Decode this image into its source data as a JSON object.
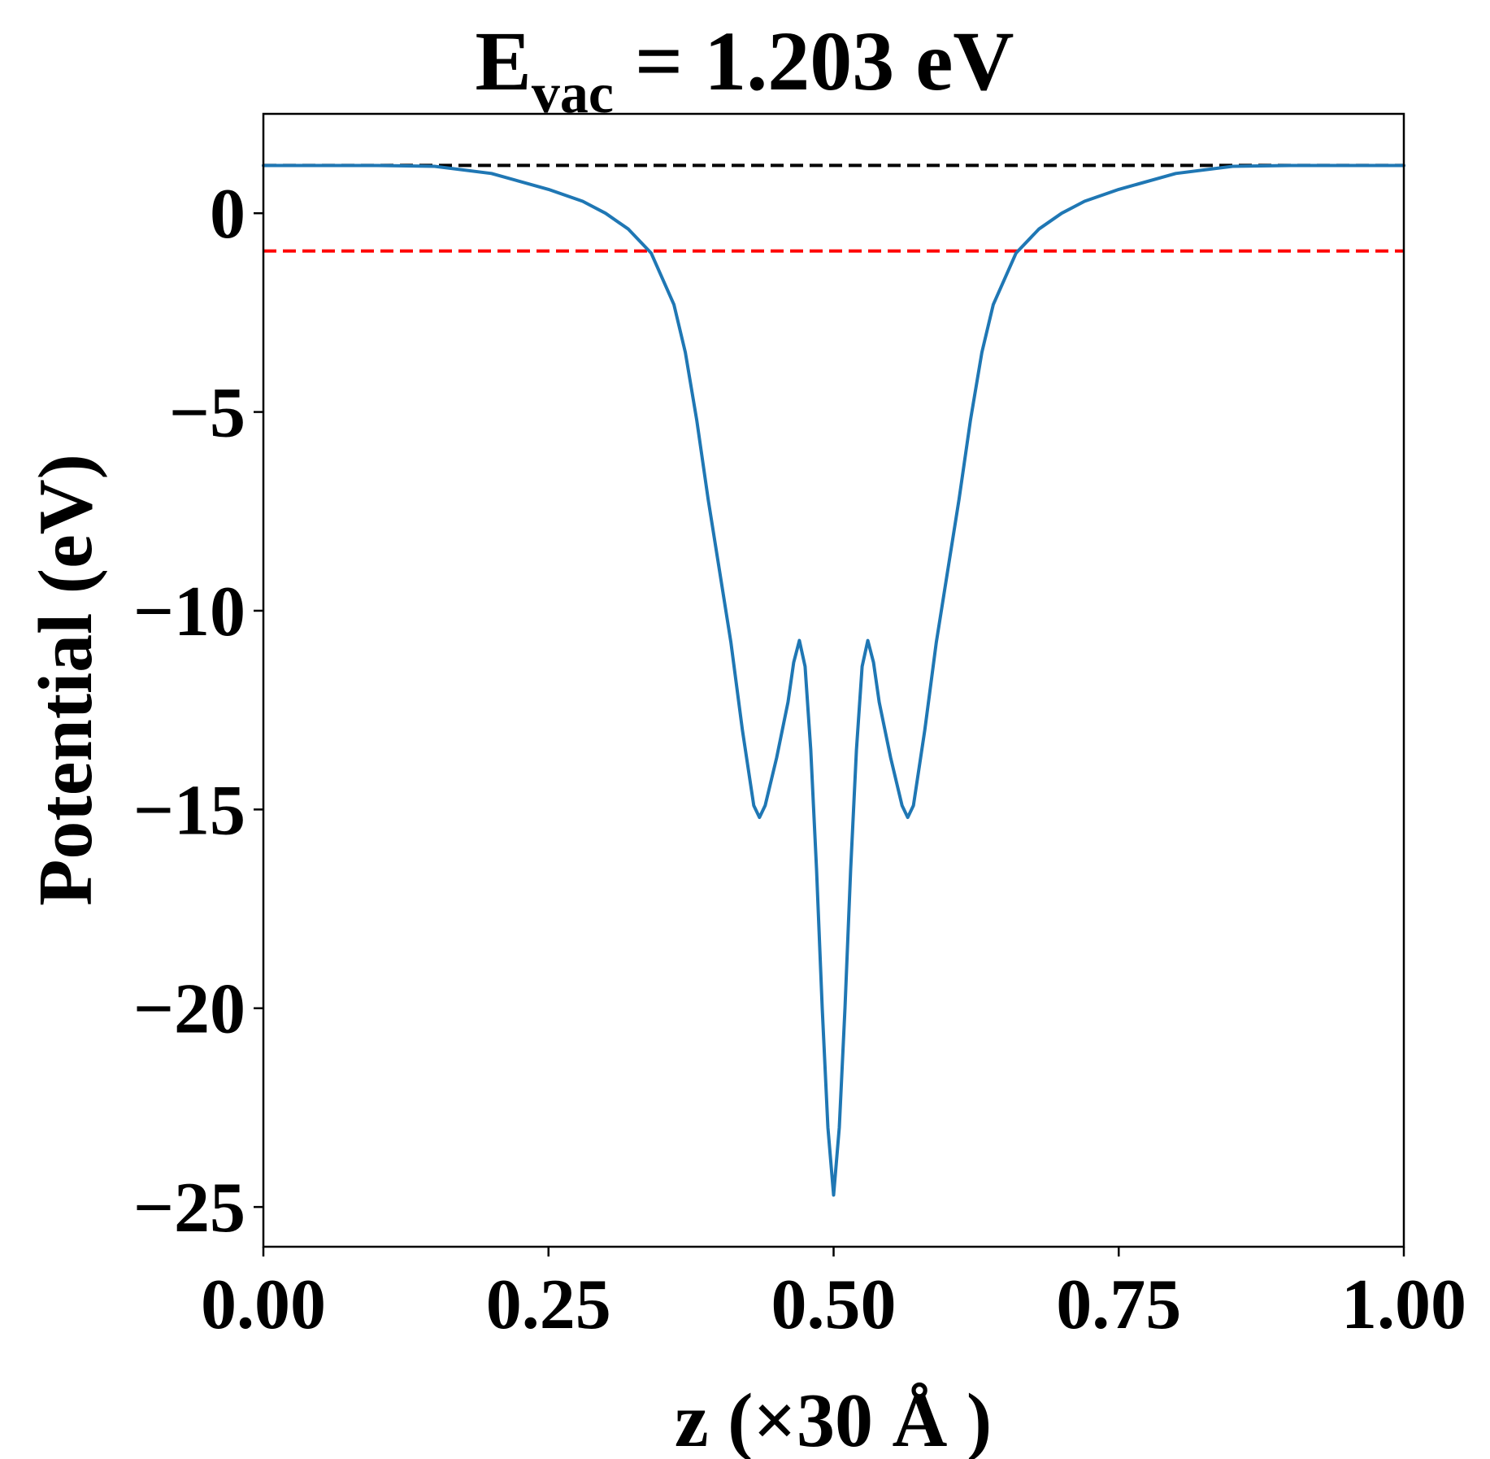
{
  "chart_data": {
    "type": "line",
    "title": {
      "main": "E",
      "subscript": "vac",
      "rest": " = 1.203 eV"
    },
    "xlabel": "z (×30 Å )",
    "ylabel": "Potential (eV)",
    "xlim": [
      0,
      1
    ],
    "ylim": [
      -26,
      2.5
    ],
    "x_ticks": [
      0.0,
      0.25,
      0.5,
      0.75,
      1.0
    ],
    "x_tick_labels": [
      "0.00",
      "0.25",
      "0.50",
      "0.75",
      "1.00"
    ],
    "y_ticks": [
      0,
      -5,
      -10,
      -15,
      -20,
      -25
    ],
    "y_tick_labels": [
      "0",
      "−5",
      "−10",
      "−15",
      "−20",
      "−25"
    ],
    "grid": false,
    "reference_lines": [
      {
        "y": 1.203,
        "color": "#000000",
        "style": "dashed"
      },
      {
        "y": -0.95,
        "color": "#ff0000",
        "style": "dashed"
      }
    ],
    "series": [
      {
        "color": "#1f77b4",
        "points": [
          [
            0.0,
            1.2
          ],
          [
            0.05,
            1.2
          ],
          [
            0.1,
            1.2
          ],
          [
            0.15,
            1.18
          ],
          [
            0.2,
            1.0
          ],
          [
            0.25,
            0.6
          ],
          [
            0.28,
            0.3
          ],
          [
            0.3,
            0.0
          ],
          [
            0.32,
            -0.4
          ],
          [
            0.34,
            -1.0
          ],
          [
            0.36,
            -2.3
          ],
          [
            0.37,
            -3.5
          ],
          [
            0.38,
            -5.2
          ],
          [
            0.39,
            -7.2
          ],
          [
            0.4,
            -9.0
          ],
          [
            0.41,
            -10.8
          ],
          [
            0.42,
            -13.0
          ],
          [
            0.43,
            -14.9
          ],
          [
            0.435,
            -15.2
          ],
          [
            0.44,
            -14.9
          ],
          [
            0.45,
            -13.7
          ],
          [
            0.46,
            -12.3
          ],
          [
            0.465,
            -11.3
          ],
          [
            0.47,
            -10.75
          ],
          [
            0.475,
            -11.4
          ],
          [
            0.48,
            -13.5
          ],
          [
            0.485,
            -16.5
          ],
          [
            0.49,
            -20.0
          ],
          [
            0.495,
            -23.0
          ],
          [
            0.5,
            -24.7
          ],
          [
            0.505,
            -23.0
          ],
          [
            0.51,
            -20.0
          ],
          [
            0.515,
            -16.5
          ],
          [
            0.52,
            -13.5
          ],
          [
            0.525,
            -11.4
          ],
          [
            0.53,
            -10.75
          ],
          [
            0.535,
            -11.3
          ],
          [
            0.54,
            -12.3
          ],
          [
            0.55,
            -13.7
          ],
          [
            0.56,
            -14.9
          ],
          [
            0.565,
            -15.2
          ],
          [
            0.57,
            -14.9
          ],
          [
            0.58,
            -13.0
          ],
          [
            0.59,
            -10.8
          ],
          [
            0.6,
            -9.0
          ],
          [
            0.61,
            -7.2
          ],
          [
            0.62,
            -5.2
          ],
          [
            0.63,
            -3.5
          ],
          [
            0.64,
            -2.3
          ],
          [
            0.66,
            -1.0
          ],
          [
            0.68,
            -0.4
          ],
          [
            0.7,
            0.0
          ],
          [
            0.72,
            0.3
          ],
          [
            0.75,
            0.6
          ],
          [
            0.8,
            1.0
          ],
          [
            0.85,
            1.18
          ],
          [
            0.9,
            1.2
          ],
          [
            0.95,
            1.2
          ],
          [
            1.0,
            1.2
          ]
        ]
      }
    ]
  }
}
